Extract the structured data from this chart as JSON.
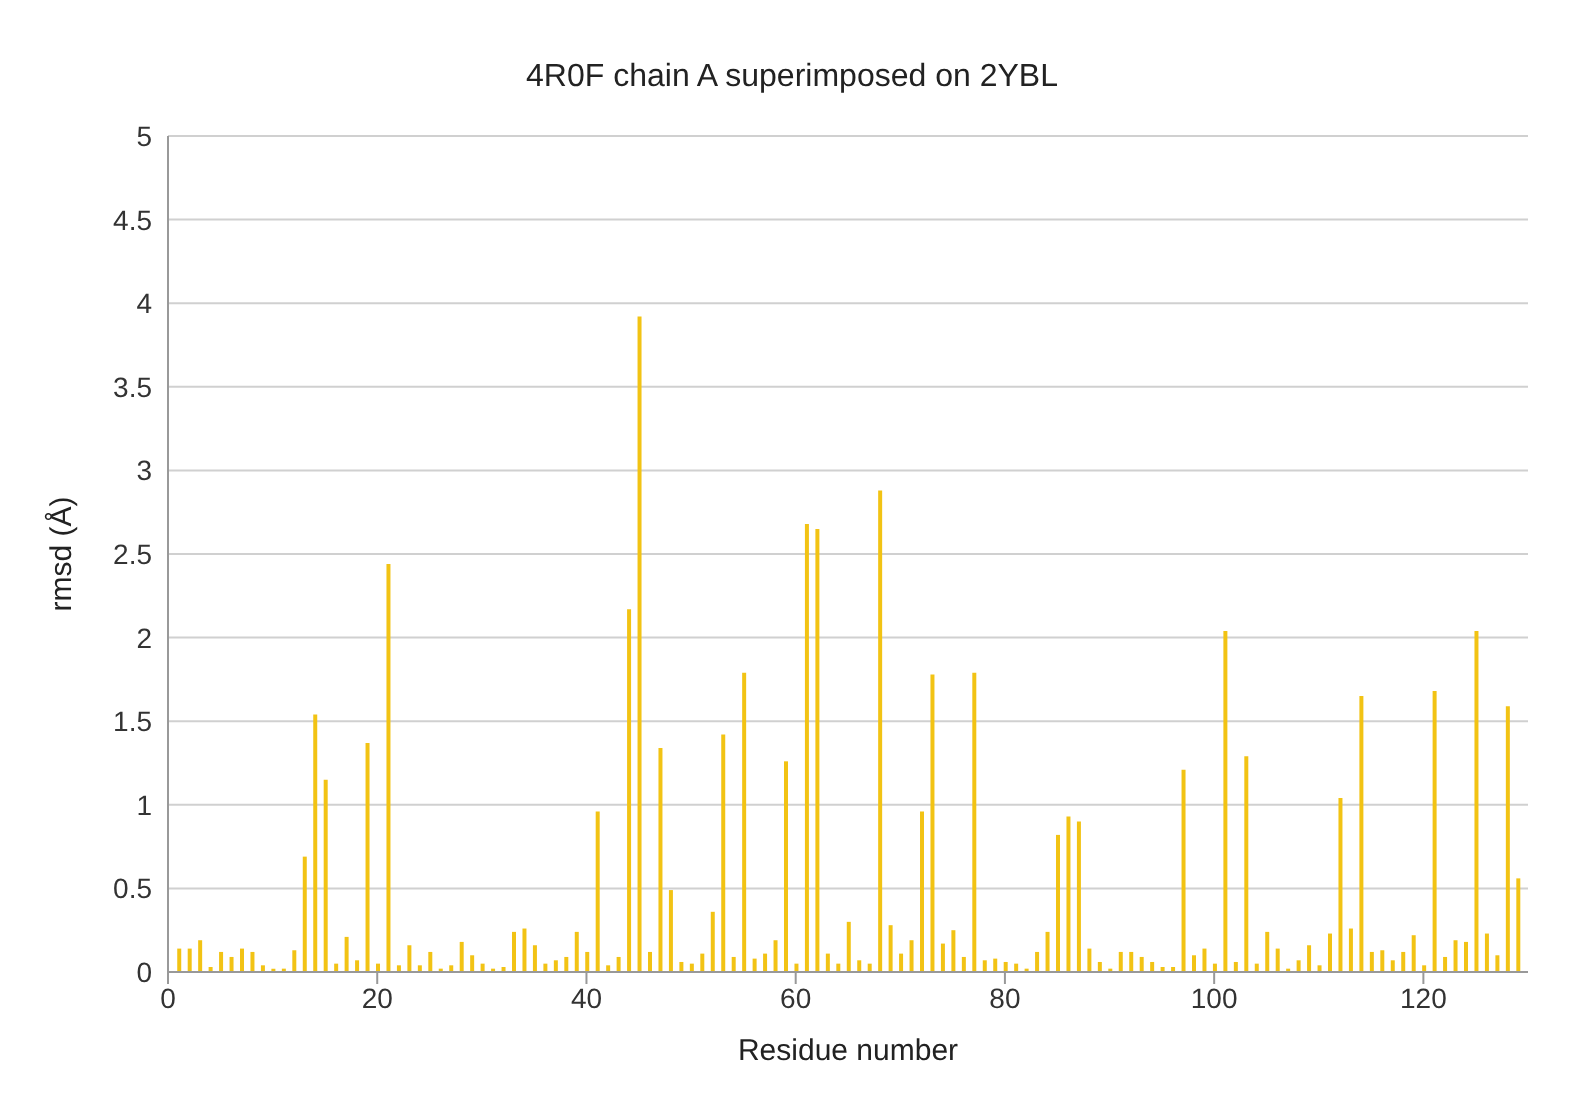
{
  "chart_data": {
    "type": "bar",
    "title": "4R0F chain A superimposed on 2YBL",
    "xlabel": "Residue number",
    "ylabel": "rmsd (Å)",
    "x": [
      1,
      2,
      3,
      4,
      5,
      6,
      7,
      8,
      9,
      10,
      11,
      12,
      13,
      14,
      15,
      16,
      17,
      18,
      19,
      20,
      21,
      22,
      23,
      24,
      25,
      26,
      27,
      28,
      29,
      30,
      31,
      32,
      33,
      34,
      35,
      36,
      37,
      38,
      39,
      40,
      41,
      42,
      43,
      44,
      45,
      46,
      47,
      48,
      49,
      50,
      51,
      52,
      53,
      54,
      55,
      56,
      57,
      58,
      59,
      60,
      61,
      62,
      63,
      64,
      65,
      66,
      67,
      68,
      69,
      70,
      71,
      72,
      73,
      74,
      75,
      76,
      77,
      78,
      79,
      80,
      81,
      82,
      83,
      84,
      85,
      86,
      87,
      88,
      89,
      90,
      91,
      92,
      93,
      94,
      95,
      96,
      97,
      98,
      99,
      100,
      101,
      102,
      103,
      104,
      105,
      106,
      107,
      108,
      109,
      110,
      111,
      112,
      113,
      114,
      115,
      116,
      117,
      118,
      119,
      120,
      121,
      122,
      123,
      124,
      125,
      126,
      127,
      128,
      129
    ],
    "values": [
      0.14,
      0.14,
      0.19,
      0.03,
      0.12,
      0.09,
      0.14,
      0.12,
      0.04,
      0.02,
      0.02,
      0.13,
      0.69,
      1.54,
      1.15,
      0.05,
      0.21,
      0.07,
      1.37,
      0.05,
      2.44,
      0.04,
      0.16,
      0.04,
      0.12,
      0.02,
      0.04,
      0.18,
      0.1,
      0.05,
      0.02,
      0.03,
      0.24,
      0.26,
      0.16,
      0.05,
      0.07,
      0.09,
      0.24,
      0.12,
      0.96,
      0.04,
      0.09,
      2.17,
      3.92,
      0.12,
      1.34,
      0.49,
      0.06,
      0.05,
      0.11,
      0.36,
      1.42,
      0.09,
      1.79,
      0.08,
      0.11,
      0.19,
      1.26,
      0.05,
      2.68,
      2.65,
      0.11,
      0.05,
      0.3,
      0.07,
      0.05,
      2.88,
      0.28,
      0.11,
      0.19,
      0.96,
      1.78,
      0.17,
      0.25,
      0.09,
      1.79,
      0.07,
      0.08,
      0.06,
      0.05,
      0.02,
      0.12,
      0.24,
      0.82,
      0.93,
      0.9,
      0.14,
      0.06,
      0.02,
      0.12,
      0.12,
      0.09,
      0.06,
      0.03,
      0.03,
      1.21,
      0.1,
      0.14,
      0.05,
      2.04,
      0.06,
      1.29,
      0.05,
      0.24,
      0.14,
      0.02,
      0.07,
      0.16,
      0.04,
      0.23,
      1.04,
      0.26,
      1.65,
      0.12,
      0.13,
      0.07,
      0.12,
      0.22,
      0.04,
      1.68,
      0.09,
      0.19,
      0.18,
      2.04,
      0.23,
      0.1,
      1.59,
      0.56
    ],
    "color": "#f2c314",
    "xlim": [
      0,
      130
    ],
    "xticks": [
      0,
      20,
      40,
      60,
      80,
      100,
      120
    ],
    "ylim": [
      0,
      5
    ],
    "yticks": [
      0,
      0.5,
      1,
      1.5,
      2,
      2.5,
      3,
      3.5,
      4,
      4.5,
      5
    ],
    "grid": "y",
    "legend": false
  }
}
